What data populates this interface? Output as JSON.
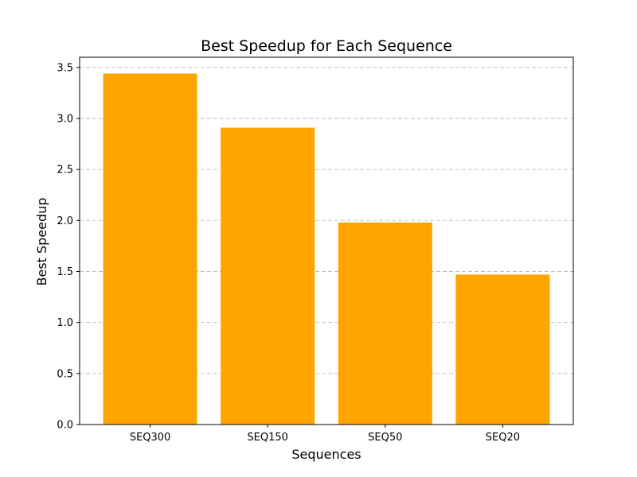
{
  "chart_data": {
    "type": "bar",
    "title": "Best Speedup for Each Sequence",
    "xlabel": "Sequences",
    "ylabel": "Best Speedup",
    "categories": [
      "SEQ300",
      "SEQ150",
      "SEQ50",
      "SEQ20"
    ],
    "values": [
      3.44,
      2.91,
      1.98,
      1.47
    ],
    "ylim": [
      0,
      3.6
    ],
    "yticks": [
      "0.0",
      "0.5",
      "1.0",
      "1.5",
      "2.0",
      "2.5",
      "3.0",
      "3.5"
    ],
    "grid": "horizontal dashed",
    "bar_color": "#ffa500"
  }
}
